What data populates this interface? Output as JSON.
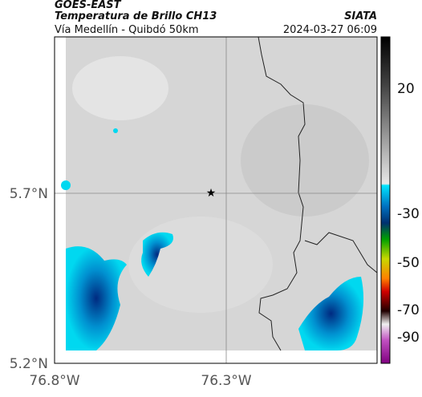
{
  "header": {
    "title": "GOES-EAST",
    "subtitle": "Temperatura de Brillo CH13",
    "region": "Vía Medellín - Quibdó 50km",
    "source": "SIATA",
    "timestamp": "2024-03-27 06:09"
  },
  "map": {
    "lat_labels": [
      "5.7°N",
      "5.2°N"
    ],
    "lon_labels": [
      "76.8°W",
      "76.3°W"
    ]
  },
  "colorbar": {
    "ticks": [
      20,
      -30,
      -50,
      -70,
      -90
    ]
  }
}
